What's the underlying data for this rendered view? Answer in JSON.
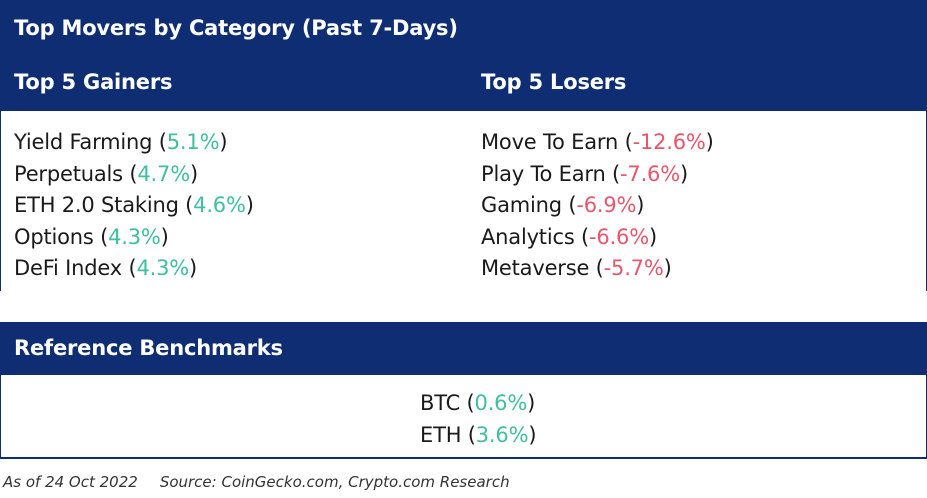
{
  "header": {
    "title": "Top Movers by Category (Past 7-Days)",
    "gainers_heading": "Top 5 Gainers",
    "losers_heading": "Top 5 Losers"
  },
  "gainers": [
    {
      "name": "Yield Farming",
      "change": "5.1%"
    },
    {
      "name": "Perpetuals",
      "change": "4.7%"
    },
    {
      "name": "ETH 2.0 Staking",
      "change": "4.6%"
    },
    {
      "name": "Options",
      "change": "4.3%"
    },
    {
      "name": "DeFi Index",
      "change": "4.3%"
    }
  ],
  "losers": [
    {
      "name": "Move To Earn",
      "change": "-12.6%"
    },
    {
      "name": "Play To Earn",
      "change": "-7.6%"
    },
    {
      "name": "Gaming",
      "change": "-6.9%"
    },
    {
      "name": "Analytics",
      "change": "-6.6%"
    },
    {
      "name": "Metaverse",
      "change": "-5.7%"
    }
  ],
  "benchmarks": {
    "heading": "Reference Benchmarks",
    "items": [
      {
        "name": "BTC",
        "change": "0.6%"
      },
      {
        "name": "ETH",
        "change": "3.6%"
      }
    ]
  },
  "footer": {
    "date": "As of 24 Oct 2022",
    "source": "Source: CoinGecko.com, Crypto.com Research"
  },
  "colors": {
    "header_bg": "#0f2d72",
    "positive": "#3fbf9f",
    "negative": "#e8566c"
  }
}
